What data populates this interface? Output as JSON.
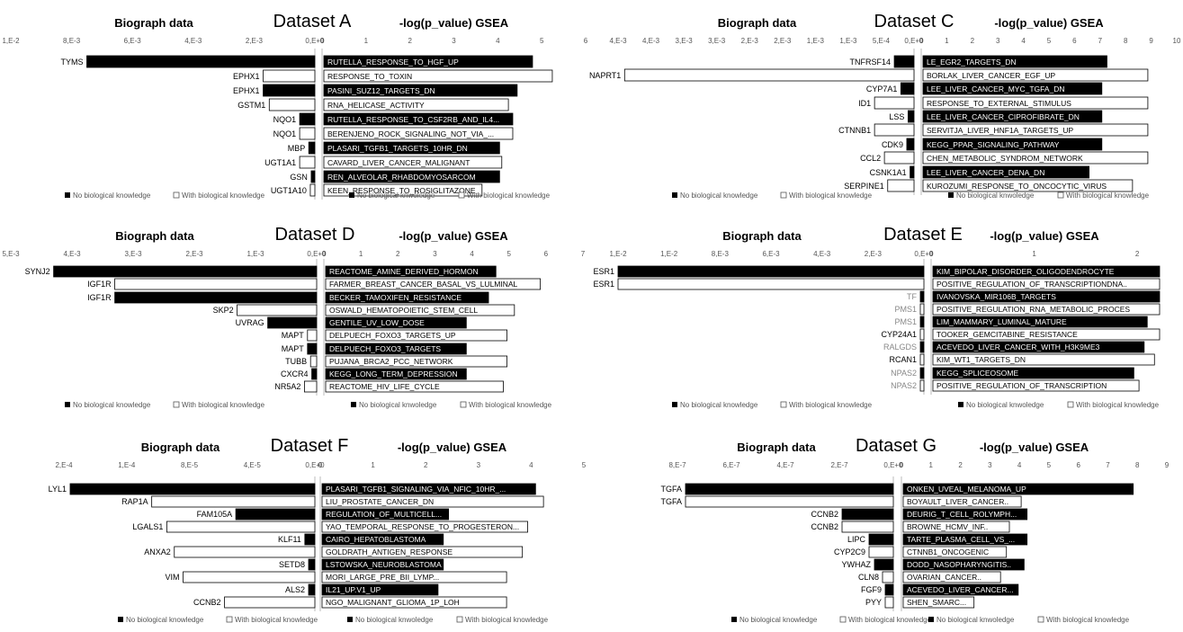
{
  "headers": {
    "left_title": "Biograph data",
    "right_title": "-log(p_value) GSEA",
    "legend_black_left": "No biological knowledge",
    "legend_white_left": "With biological knowledge",
    "legend_black_right": "No biological knwoledge",
    "legend_white_right": "With biological knowledge"
  },
  "chart_data": [
    {
      "type": "bar",
      "title": "Dataset A",
      "left": {
        "title": "Biograph data",
        "ticks": [
          "1,E-2",
          "8,E-3",
          "6,E-3",
          "4,E-3",
          "2,E-3",
          "0,E+0"
        ],
        "max": 0.01,
        "categories": [
          "TYMS",
          "EPHX1",
          "EPHX1",
          "GSTM1",
          "NQO1",
          "NQO1",
          "MBP",
          "UGT1A1",
          "GSN",
          "UGT1A10"
        ],
        "values": [
          0.0075,
          0.0017,
          0.0017,
          0.0015,
          0.0005,
          0.0005,
          0.0002,
          0.0005,
          0.00012,
          0.00015
        ],
        "fill": [
          "black",
          "white",
          "black",
          "white",
          "black",
          "white",
          "black",
          "white",
          "black",
          "white"
        ],
        "gray_labels": []
      },
      "right": {
        "title": "-log(p_value) GSEA",
        "ticks": [
          "0",
          "1",
          "2",
          "3",
          "4",
          "5",
          "6"
        ],
        "max": 6,
        "categories": [
          "RUTELLA_RESPONSE_TO_HGF_UP",
          "RESPONSE_TO_TOXIN",
          "PASINI_SUZ12_TARGETS_DN",
          "RNA_HELICASE_ACTIVITY",
          "RUTELLA_RESPONSE_TO_CSF2RB_AND_IL4...",
          "BERENJENO_ROCK_SIGNALING_NOT_VIA_...",
          "PLASARI_TGFB1_TARGETS_10HR_DN",
          "CAVARD_LIVER_CANCER_MALIGNANT",
          "REN_ALVEOLAR_RHABDOMYOSARCOM",
          "KEEN_RESPONSE_TO_ROSIGLITAZONE"
        ],
        "values": [
          4.75,
          5.2,
          4.4,
          4.2,
          4.3,
          4.3,
          4.0,
          4.05,
          4.0,
          3.6
        ],
        "fill": [
          "black",
          "white",
          "black",
          "white",
          "black",
          "white",
          "black",
          "white",
          "black",
          "white"
        ]
      }
    },
    {
      "type": "bar",
      "title": "Dataset C",
      "left": {
        "title": "Biograph data",
        "ticks": [
          "4,E-3",
          "4,E-3",
          "3,E-3",
          "3,E-3",
          "2,E-3",
          "2,E-3",
          "1,E-3",
          "1,E-3",
          "5,E-4",
          "0,E+0"
        ],
        "max": 0.0045,
        "categories": [
          "TNFRSF14",
          "NAPRT1",
          "CYP7A1",
          "ID1",
          "LSS",
          "CTNNB1",
          "CDK9",
          "CCL2",
          "CSNK1A1",
          "SERPINE1"
        ],
        "values": [
          0.0003,
          0.0044,
          0.0002,
          0.0006,
          9e-05,
          0.0006,
          0.00011,
          0.00045,
          6e-05,
          0.0004
        ],
        "fill": [
          "black",
          "white",
          "black",
          "white",
          "black",
          "white",
          "black",
          "white",
          "black",
          "white"
        ],
        "gray_labels": []
      },
      "right": {
        "title": "-log(p_value) GSEA",
        "ticks": [
          "0",
          "1",
          "2",
          "3",
          "4",
          "5",
          "6",
          "7",
          "8",
          "9",
          "10"
        ],
        "max": 10,
        "categories": [
          "LE_EGR2_TARGETS_DN",
          "BORLAK_LIVER_CANCER_EGF_UP",
          "LEE_LIVER_CANCER_MYC_TGFA_DN",
          "RESPONSE_TO_EXTERNAL_STIMULUS",
          "LEE_LIVER_CANCER_CIPROFIBRATE_DN",
          "SERVITJA_LIVER_HNF1A_TARGETS_UP",
          "KEGG_PPAR_SIGNALING_PATHWAY",
          "CHEN_METABOLIC_SYNDROM_NETWORK",
          "LEE_LIVER_CANCER_DENA_DN",
          "KUROZUMI_RESPONSE_TO_ONCOCYTIC_VIRUS"
        ],
        "values": [
          7.2,
          8.8,
          7.0,
          8.8,
          7.0,
          8.8,
          7.0,
          8.8,
          6.5,
          8.2
        ],
        "fill": [
          "black",
          "white",
          "black",
          "white",
          "black",
          "white",
          "black",
          "white",
          "black",
          "white"
        ]
      }
    },
    {
      "type": "bar",
      "title": "Dataset D",
      "left": {
        "title": "Biograph data",
        "ticks": [
          "5,E-3",
          "4,E-3",
          "3,E-3",
          "2,E-3",
          "1,E-3",
          "0,E+0"
        ],
        "max": 0.005,
        "categories": [
          "SYNJ2",
          "IGF1R",
          "IGF1R",
          "SKP2",
          "UVRAG",
          "MAPT",
          "MAPT",
          "TUBB",
          "CXCR4",
          "NR5A2"
        ],
        "values": [
          0.0043,
          0.0033,
          0.0033,
          0.0013,
          0.0008,
          0.00015,
          0.00015,
          0.0001,
          8e-05,
          0.0002
        ],
        "fill": [
          "black",
          "white",
          "black",
          "white",
          "black",
          "white",
          "black",
          "white",
          "black",
          "white"
        ],
        "gray_labels": []
      },
      "right": {
        "title": "-log(p_value) GSEA",
        "ticks": [
          "0",
          "1",
          "2",
          "3",
          "4",
          "5",
          "6",
          "7"
        ],
        "max": 7,
        "categories": [
          "REACTOME_AMINE_DERIVED_HORMON",
          "FARMER_BREAST_CANCER_BASAL_VS_LULMINAL",
          "BECKER_TAMOXIFEN_RESISTANCE",
          "OSWALD_HEMATOPOIETIC_STEM_CELL",
          "GENTILE_UV_LOW_DOSE",
          "DELPUECH_FOXO3_TARGETS_UP",
          "DELPUECH_FOXO3_TARGETS",
          "PUJANA_BRCA2_PCC_NETWORK",
          "KEGG_LONG_TERM_DEPRESSION",
          "REACTOME_HIV_LIFE_CYCLE"
        ],
        "values": [
          4.6,
          5.8,
          4.4,
          5.1,
          3.8,
          4.9,
          3.8,
          4.9,
          3.8,
          4.8
        ],
        "fill": [
          "black",
          "white",
          "black",
          "white",
          "black",
          "white",
          "black",
          "white",
          "black",
          "white"
        ]
      }
    },
    {
      "type": "bar",
      "title": "Dataset E",
      "left": {
        "title": "Biograph data",
        "ticks": [
          "1,E-2",
          "1,E-2",
          "8,E-3",
          "6,E-3",
          "4,E-3",
          "2,E-3",
          "0,E+0"
        ],
        "max": 0.012,
        "categories": [
          "ESR1",
          "ESR1",
          "TF",
          "PMS1",
          "PMS1",
          "CYP24A1",
          "RALGDS",
          "RCAN1",
          "NPAS2",
          "NPAS2"
        ],
        "values": [
          0.012,
          0.012,
          0.0001,
          0.0001,
          0.0001,
          0.0001,
          0.0001,
          0.0001,
          0.0001,
          0.0001
        ],
        "fill": [
          "black",
          "white",
          "black",
          "white",
          "black",
          "white",
          "black",
          "white",
          "black",
          "white"
        ],
        "gray_labels": [
          "TF",
          "PMS1",
          "RALGDS",
          "NPAS2"
        ]
      },
      "right": {
        "title": "-log(p_value) GSEA",
        "ticks": [
          "0",
          "1",
          "2"
        ],
        "max": 2.2,
        "categories": [
          "KIM_BIPOLAR_DISORDER_OLIGODENDROCYTE",
          "POSITIVE_REGULATION_OF_TRANSCRIPTIONDNA..",
          "IVANOVSKA_MIR106B_TARGETS",
          "POSITIVE_REGULATION_RNA_METABOLIC_PROCES",
          "LIM_MAMMARY_LUMINAL_MATURE",
          "TOOKER_GEMCITABINE_RESISTANCE",
          "ACEVEDO_LIVER_CANCER_WITH_H3K9ME3",
          "KIM_WT1_TARGETS_DN",
          "KEGG_SPLICEOSOME",
          "POSITIVE_REGULATION_OF_TRANSCRIPTION"
        ],
        "values": [
          2.2,
          2.2,
          2.2,
          2.2,
          2.08,
          2.2,
          2.05,
          2.15,
          1.95,
          2.0
        ],
        "fill": [
          "black",
          "white",
          "black",
          "white",
          "black",
          "white",
          "black",
          "white",
          "black",
          "white"
        ]
      }
    },
    {
      "type": "bar",
      "title": "Dataset F",
      "left": {
        "title": "Biograph data",
        "ticks": [
          "2,E-4",
          "1,E-4",
          "8,E-5",
          "4,E-5",
          "0,E+0"
        ],
        "max": 0.0002,
        "categories": [
          "LYL1",
          "RAP1A",
          "FAM105A",
          "LGALS1",
          "KLF11",
          "ANXA2",
          "SETD8",
          "VIM",
          "ALS2",
          "CCNB2"
        ],
        "values": [
          0.000195,
          0.00013,
          6.3e-05,
          0.000118,
          8e-06,
          0.000112,
          5e-06,
          0.000105,
          5e-06,
          7.2e-05
        ],
        "fill": [
          "black",
          "white",
          "black",
          "white",
          "black",
          "white",
          "black",
          "white",
          "black",
          "white"
        ],
        "gray_labels": []
      },
      "right": {
        "title": "-log(p_value) GSEA",
        "ticks": [
          "0",
          "1",
          "2",
          "3",
          "4",
          "5"
        ],
        "max": 5,
        "categories": [
          "PLASARI_TGFB1_SIGNALING_VIA_NFIC_10HR_...",
          "LIU_PROSTATE_CANCER_DN",
          "REGULATION_OF_MULTICELL...",
          "YAO_TEMPORAL_RESPONSE_TO_PROGESTERON...",
          "CAIRO_HEPATOBLASTOMA",
          "GOLDRATH_ANTIGEN_RESPONSE",
          "LSTOWSKA_NEUROBLASTOMA",
          "MORI_LARGE_PRE_BII_LYMP...",
          "IL21_UP.V1_UP",
          "NGO_MALIGNANT_GLIOMA_1P_LOH"
        ],
        "values": [
          4.05,
          4.2,
          2.4,
          3.9,
          2.3,
          3.8,
          2.3,
          3.5,
          2.2,
          3.5
        ],
        "fill": [
          "black",
          "white",
          "black",
          "white",
          "black",
          "white",
          "black",
          "white",
          "black",
          "white"
        ]
      }
    },
    {
      "type": "bar",
      "title": "Dataset G",
      "left": {
        "title": "Biograph data",
        "ticks": [
          "8,E-7",
          "6,E-7",
          "4,E-7",
          "2,E-7",
          "0,E+0"
        ],
        "max": 8e-07,
        "categories": [
          "TGFA",
          "TGFA",
          "CCNB2",
          "CCNB2",
          "LIPC",
          "CYP2C9",
          "YWHAZ",
          "CLN8",
          "FGF9",
          "PYY"
        ],
        "values": [
          7.7e-07,
          7.7e-07,
          1.9e-07,
          1.9e-07,
          9e-08,
          9e-08,
          7e-08,
          4e-08,
          3e-08,
          3e-08
        ],
        "fill": [
          "black",
          "white",
          "black",
          "white",
          "black",
          "white",
          "black",
          "white",
          "black",
          "white"
        ],
        "gray_labels": []
      },
      "right": {
        "title": "-log(p_value) GSEA",
        "ticks": [
          "0",
          "1",
          "2",
          "3",
          "4",
          "5",
          "6",
          "7",
          "8",
          "9"
        ],
        "max": 9,
        "categories": [
          "ONKEN_UVEAL_MELANOMA_UP",
          "BOYAULT_LIVER_CANCER..",
          "DEURIG_T_CELL_ROLYMPH...",
          "BROWNE_HCMV_INF..",
          "TARTE_PLASMA_CELL_VS_...",
          "CTNNB1_ONCOGENIC",
          "DODD_NASOPHARYNGITIS..",
          "OVARIAN_CANCER..",
          "ACEVEDO_LIVER_CANCER...",
          "SHEN_SMARC..."
        ],
        "values": [
          7.8,
          4.0,
          4.2,
          3.6,
          4.2,
          3.5,
          4.1,
          3.3,
          3.9,
          2.4
        ],
        "fill": [
          "black",
          "white",
          "black",
          "white",
          "black",
          "white",
          "black",
          "white",
          "black",
          "white"
        ]
      }
    }
  ]
}
